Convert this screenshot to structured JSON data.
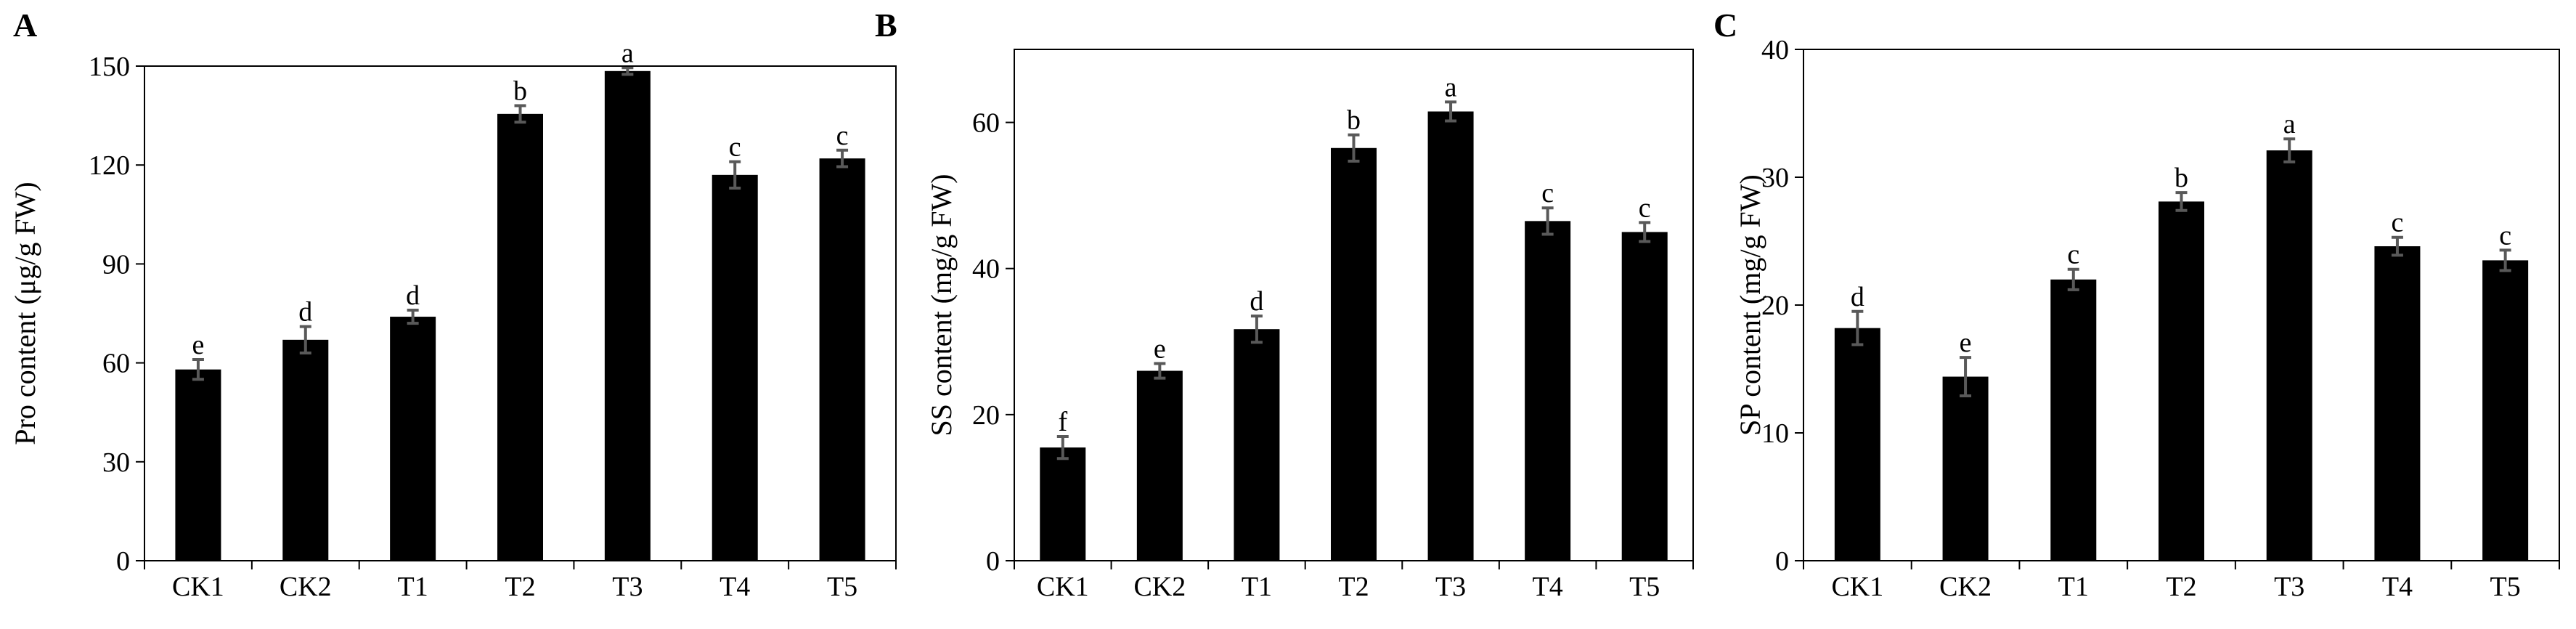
{
  "chart_data": [
    {
      "type": "bar",
      "panel_label": "A",
      "y_label": "Pro content (μg/g FW)",
      "categories": [
        "CK1",
        "CK2",
        "T1",
        "T2",
        "T3",
        "T4",
        "T5"
      ],
      "values": [
        58,
        67,
        74,
        135.5,
        148.5,
        117,
        122
      ],
      "errors": [
        3,
        4,
        2,
        2.5,
        1,
        4,
        2.5
      ],
      "significance_letters": [
        "e",
        "d",
        "d",
        "b",
        "a",
        "c",
        "c"
      ],
      "color": "#000000",
      "error_color": "#595959",
      "ylim": [
        0,
        150
      ],
      "yticks": [
        0,
        30,
        60,
        90,
        120,
        150
      ]
    },
    {
      "type": "bar",
      "panel_label": "B",
      "y_label": "SS content (mg/g FW)",
      "categories": [
        "CK1",
        "CK2",
        "T1",
        "T2",
        "T3",
        "T4",
        "T5"
      ],
      "values": [
        15.5,
        26,
        31.7,
        56.5,
        61.5,
        46.5,
        45
      ],
      "errors": [
        1.5,
        1,
        1.8,
        1.8,
        1.3,
        1.8,
        1.3
      ],
      "significance_letters": [
        "f",
        "e",
        "d",
        "b",
        "a",
        "c",
        "c"
      ],
      "color": "#000000",
      "error_color": "#595959",
      "ylim": [
        0,
        70
      ],
      "yticks": [
        0,
        20,
        40,
        60
      ]
    },
    {
      "type": "bar",
      "panel_label": "C",
      "y_label": "SP content (mg/g FW)",
      "categories": [
        "CK1",
        "CK2",
        "T1",
        "T2",
        "T3",
        "T4",
        "T5"
      ],
      "values": [
        18.2,
        14.4,
        22,
        28.1,
        32.1,
        24.6,
        23.5
      ],
      "errors": [
        1.3,
        1.5,
        0.8,
        0.7,
        0.9,
        0.7,
        0.8
      ],
      "significance_letters": [
        "d",
        "e",
        "c",
        "b",
        "a",
        "c",
        "c"
      ],
      "color": "#000000",
      "error_color": "#595959",
      "ylim": [
        0,
        40
      ],
      "yticks": [
        0,
        10,
        20,
        30,
        40
      ]
    }
  ]
}
